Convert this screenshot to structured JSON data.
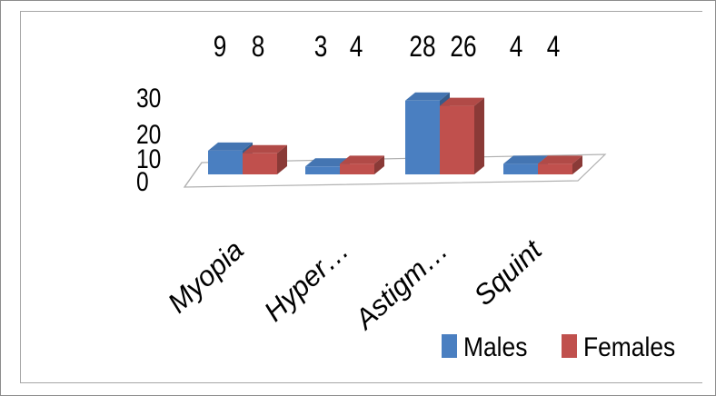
{
  "chart_data": {
    "type": "bar",
    "categories": [
      "Myopia",
      "Hyper…",
      "Astigm…",
      "Squint"
    ],
    "series": [
      {
        "name": "Males",
        "values": [
          9,
          3,
          28,
          4
        ],
        "color": "#4a7fc1"
      },
      {
        "name": "Females",
        "values": [
          8,
          4,
          26,
          4
        ],
        "color": "#c0504d"
      }
    ],
    "yticks": [
      "0",
      "10",
      "20",
      "30"
    ],
    "ylim": [
      0,
      30
    ],
    "legend_position": "bottom-right",
    "three_d": true,
    "grid": false
  }
}
